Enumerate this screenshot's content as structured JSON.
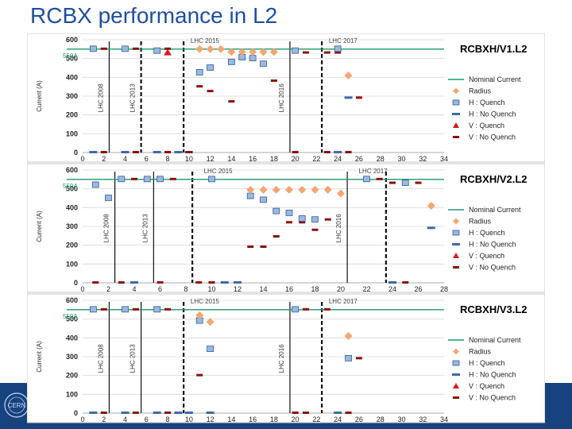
{
  "slide": {
    "title": "RCBX performance in L2",
    "logo_text": "CERN"
  },
  "colors": {
    "title": "#1f4fa0",
    "footer": "#17427e",
    "nominal": "#1a9a6a",
    "radius": "#f2a672",
    "h_quench_fill": "#9cb8df",
    "h_quench_edge": "#2f5f9a",
    "h_noquench": "#3f6aa6",
    "v_quench": "#d11c1c",
    "v_noquench": "#8b1010",
    "grid": "#d9d9d9"
  },
  "legend": [
    {
      "key": "nominal",
      "label": "Nominal Current"
    },
    {
      "key": "radius",
      "label": "Radius"
    },
    {
      "key": "hq",
      "label": "H : Quench"
    },
    {
      "key": "hnq",
      "label": "H : No Quench"
    },
    {
      "key": "vq",
      "label": "V : Quench"
    },
    {
      "key": "vnq",
      "label": "V : No Quench"
    }
  ],
  "chart_data": [
    {
      "type": "scatter",
      "title": "RCBXH/V1.L2",
      "ylabel": "Current (A)",
      "nominal_label": "550A",
      "nominal": 550,
      "ylim": [
        0,
        600
      ],
      "yticks": [
        0,
        100,
        200,
        300,
        400,
        500,
        600
      ],
      "xlim": [
        0,
        34
      ],
      "xticks": [
        0,
        2,
        4,
        6,
        8,
        10,
        12,
        14,
        16,
        18,
        20,
        22,
        24,
        26,
        28,
        30,
        32,
        34
      ],
      "epoch_labels": [
        {
          "text": "LHC 2015",
          "x": 11.5
        },
        {
          "text": "LHC 2017",
          "x": 24.5
        }
      ],
      "vlines": [
        {
          "x": 2.5,
          "style": "solid",
          "label": "LHC 2008"
        },
        {
          "x": 5.5,
          "style": "dashed",
          "label": "LHC 2013"
        },
        {
          "x": 9.5,
          "style": "dashed",
          "label": ""
        },
        {
          "x": 19.5,
          "style": "solid",
          "label": "LHC 2016"
        },
        {
          "x": 22.5,
          "style": "dashed",
          "label": ""
        }
      ],
      "h_quench": [
        [
          1,
          550
        ],
        [
          4,
          550
        ],
        [
          7,
          540
        ],
        [
          11,
          425
        ],
        [
          12,
          450
        ],
        [
          14,
          480
        ],
        [
          15,
          505
        ],
        [
          16,
          500
        ],
        [
          17,
          470
        ],
        [
          20,
          540
        ],
        [
          24,
          550
        ]
      ],
      "h_noquench": [
        [
          1,
          0
        ],
        [
          4,
          0
        ],
        [
          7,
          0
        ],
        [
          9,
          0
        ],
        [
          10,
          0
        ],
        [
          24,
          0
        ],
        [
          25,
          290
        ]
      ],
      "v_quench": [
        [
          8,
          530
        ]
      ],
      "v_noquench": [
        [
          2,
          0
        ],
        [
          5,
          0
        ],
        [
          8,
          0
        ],
        [
          10,
          0
        ],
        [
          11,
          350
        ],
        [
          12,
          325
        ],
        [
          14,
          270
        ],
        [
          18,
          380
        ],
        [
          20,
          0
        ],
        [
          23,
          0
        ],
        [
          25,
          0
        ],
        [
          2,
          550
        ],
        [
          5,
          550
        ],
        [
          8,
          550
        ],
        [
          21,
          530
        ],
        [
          23,
          530
        ],
        [
          24,
          530
        ],
        [
          26,
          290
        ]
      ],
      "radius": [
        [
          11,
          550
        ],
        [
          12,
          550
        ],
        [
          13,
          550
        ],
        [
          14,
          535
        ],
        [
          15,
          535
        ],
        [
          16,
          535
        ],
        [
          17,
          535
        ],
        [
          18,
          535
        ],
        [
          25,
          410
        ]
      ]
    },
    {
      "type": "scatter",
      "title": "RCBXH/V2.L2",
      "ylabel": "Current (A)",
      "nominal_label": "550A",
      "nominal": 550,
      "ylim": [
        0,
        600
      ],
      "yticks": [
        0,
        100,
        200,
        300,
        400,
        500,
        600
      ],
      "xlim": [
        0,
        28
      ],
      "xticks": [
        0,
        2,
        4,
        6,
        8,
        10,
        12,
        14,
        16,
        18,
        20,
        22,
        24,
        26,
        28
      ],
      "epoch_labels": [
        {
          "text": "LHC 2015",
          "x": 10.5
        },
        {
          "text": "LHC 2017",
          "x": 22.5
        }
      ],
      "vlines": [
        {
          "x": 2.5,
          "style": "solid",
          "label": "LHC 2008"
        },
        {
          "x": 5.5,
          "style": "solid",
          "label": "LHC 2013"
        },
        {
          "x": 8.5,
          "style": "dashed",
          "label": ""
        },
        {
          "x": 20.5,
          "style": "solid",
          "label": "LHC 2016"
        },
        {
          "x": 23.5,
          "style": "dashed",
          "label": ""
        }
      ],
      "h_quench": [
        [
          1,
          520
        ],
        [
          2,
          450
        ],
        [
          3,
          550
        ],
        [
          5,
          550
        ],
        [
          6,
          550
        ],
        [
          10,
          550
        ],
        [
          13,
          460
        ],
        [
          14,
          440
        ],
        [
          15,
          380
        ],
        [
          16,
          370
        ],
        [
          17,
          340
        ],
        [
          18,
          335
        ],
        [
          22,
          550
        ],
        [
          25,
          530
        ]
      ],
      "h_noquench": [
        [
          4,
          0
        ],
        [
          11,
          0
        ],
        [
          12,
          0
        ],
        [
          24,
          0
        ],
        [
          27,
          290
        ]
      ],
      "v_quench": [],
      "v_noquench": [
        [
          1,
          0
        ],
        [
          3,
          0
        ],
        [
          6,
          0
        ],
        [
          9,
          0
        ],
        [
          10,
          0
        ],
        [
          13,
          190
        ],
        [
          14,
          190
        ],
        [
          15,
          245
        ],
        [
          16,
          320
        ],
        [
          17,
          320
        ],
        [
          18,
          280
        ],
        [
          19,
          335
        ],
        [
          25,
          0
        ],
        [
          24,
          530
        ],
        [
          26,
          530
        ],
        [
          4,
          550
        ],
        [
          7,
          550
        ],
        [
          23,
          550
        ]
      ],
      "radius": [
        [
          13,
          495
        ],
        [
          14,
          495
        ],
        [
          15,
          495
        ],
        [
          16,
          495
        ],
        [
          17,
          495
        ],
        [
          18,
          495
        ],
        [
          19,
          495
        ],
        [
          20,
          475
        ],
        [
          27,
          410
        ]
      ]
    },
    {
      "type": "scatter",
      "title": "RCBXH/V3.L2",
      "ylabel": "Current (A)",
      "nominal_label": "550A",
      "nominal": 550,
      "ylim": [
        0,
        600
      ],
      "yticks": [
        0,
        100,
        200,
        300,
        400,
        500,
        600
      ],
      "xlim": [
        0,
        34
      ],
      "xticks": [
        0,
        2,
        4,
        6,
        8,
        10,
        12,
        14,
        16,
        18,
        20,
        22,
        24,
        26,
        28,
        30,
        32,
        34
      ],
      "epoch_labels": [
        {
          "text": "LHC 2015",
          "x": 11.5
        },
        {
          "text": "LHC 2017",
          "x": 24.5
        }
      ],
      "vlines": [
        {
          "x": 2.5,
          "style": "solid",
          "label": "LHC 2008"
        },
        {
          "x": 5.5,
          "style": "solid",
          "label": "LHC 2013"
        },
        {
          "x": 9.5,
          "style": "dashed",
          "label": ""
        },
        {
          "x": 19.5,
          "style": "solid",
          "label": "LHC 2016"
        },
        {
          "x": 22.5,
          "style": "dashed",
          "label": ""
        }
      ],
      "h_quench": [
        [
          1,
          550
        ],
        [
          4,
          550
        ],
        [
          7,
          550
        ],
        [
          11,
          490
        ],
        [
          12,
          340
        ],
        [
          20,
          550
        ],
        [
          25,
          290
        ]
      ],
      "h_noquench": [
        [
          1,
          0
        ],
        [
          4,
          0
        ],
        [
          7,
          0
        ],
        [
          9,
          0
        ],
        [
          10,
          0
        ],
        [
          12,
          0
        ],
        [
          24,
          0
        ]
      ],
      "v_quench": [],
      "v_noquench": [
        [
          2,
          0
        ],
        [
          5,
          0
        ],
        [
          8,
          0
        ],
        [
          11,
          200
        ],
        [
          12,
          340
        ],
        [
          20,
          0
        ],
        [
          21,
          0
        ],
        [
          25,
          0
        ],
        [
          26,
          290
        ],
        [
          2,
          550
        ],
        [
          5,
          550
        ],
        [
          8,
          550
        ],
        [
          21,
          550
        ],
        [
          23,
          550
        ]
      ],
      "radius": [
        [
          11,
          520
        ],
        [
          12,
          485
        ],
        [
          25,
          410
        ]
      ]
    }
  ]
}
